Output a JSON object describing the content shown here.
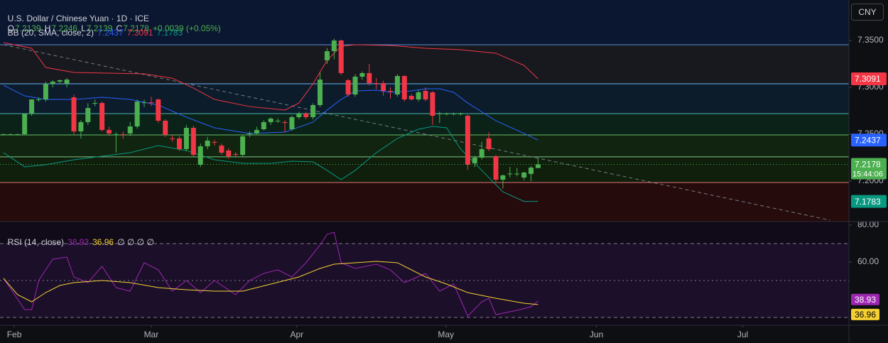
{
  "chart_data": [
    {
      "type": "candlestick",
      "title": "U.S. Dollar / Chinese Yuan · 1D · ICE",
      "ohlc_labels": [
        "O",
        "H",
        "L",
        "C"
      ],
      "change_label": "+0.0039 (+0.05%)",
      "indicator": "BB (20, SMA, close, 2)",
      "currency": "CNY",
      "countdown": "15:44:06",
      "up_color": "#4caf50",
      "down_color": "#f23645",
      "x": [
        0,
        1,
        2,
        3,
        4,
        5,
        6,
        7,
        8,
        9,
        10,
        11,
        12,
        13,
        14,
        15,
        16,
        17,
        18,
        19,
        20,
        21,
        22,
        23,
        24,
        25,
        26,
        27,
        28,
        29,
        30,
        31,
        32,
        33,
        34,
        35,
        36,
        37,
        38,
        39,
        40,
        41,
        42,
        43,
        44,
        45,
        46,
        47,
        48,
        49,
        50,
        51,
        52,
        53,
        54,
        55,
        56,
        57,
        58,
        59,
        60,
        61,
        62,
        63,
        64,
        65,
        66,
        67,
        68,
        69,
        70,
        71,
        72,
        73,
        74,
        75,
        76
      ],
      "open": [
        7.25,
        7.25,
        7.25,
        7.25,
        7.272,
        7.2871,
        7.2871,
        7.3038,
        7.3061,
        7.3038,
        7.2894,
        7.253,
        7.2629,
        7.2833,
        7.2833,
        7.2545,
        7.2492,
        7.25,
        7.2508,
        7.2583,
        7.2833,
        7.284,
        7.2871,
        7.2644,
        7.2455,
        7.2455,
        7.2341,
        7.2568,
        7.2174,
        7.2371,
        7.2417,
        7.2379,
        7.2326,
        7.2288,
        7.228,
        7.25,
        7.2508,
        7.2553,
        7.2629,
        7.2644,
        7.2629,
        7.2553,
        7.2682,
        7.272,
        7.2682,
        7.2811,
        7.3288,
        7.3386,
        7.35,
        7.3076,
        7.2924,
        7.3114,
        7.3152,
        7.3045,
        7.3045,
        7.2962,
        7.2924,
        7.3121,
        7.2909,
        7.2871,
        7.2962,
        7.2947,
        7.272,
        7.272,
        7.272,
        7.272,
        7.2697,
        7.2189,
        7.225,
        7.2455,
        7.2265,
        7.2015,
        7.2076,
        7.2076,
        7.2038,
        7.2076,
        7.2139
      ],
      "high": [
        7.2508,
        7.2508,
        7.2508,
        7.272,
        7.2871,
        7.2894,
        7.3061,
        7.3076,
        7.3083,
        7.31,
        7.2924,
        7.265,
        7.283,
        7.287,
        7.285,
        7.258,
        7.252,
        7.253,
        7.263,
        7.287,
        7.287,
        7.29,
        7.288,
        7.266,
        7.249,
        7.248,
        7.26,
        7.259,
        7.24,
        7.247,
        7.244,
        7.24,
        7.235,
        7.231,
        7.249,
        7.253,
        7.258,
        7.265,
        7.268,
        7.267,
        7.265,
        7.27,
        7.274,
        7.274,
        7.283,
        7.316,
        7.342,
        7.352,
        7.351,
        7.309,
        7.314,
        7.317,
        7.325,
        7.31,
        7.307,
        7.3,
        7.314,
        7.313,
        7.293,
        7.297,
        7.3,
        7.296,
        7.274,
        7.273,
        7.273,
        7.273,
        7.271,
        7.227,
        7.242,
        7.252,
        7.228,
        7.207,
        7.215,
        7.214,
        7.21,
        7.216,
        7.2246
      ],
      "low": [
        7.2492,
        7.2492,
        7.2492,
        7.2492,
        7.2697,
        7.2848,
        7.2848,
        7.3,
        7.3038,
        7.3,
        7.25,
        7.2455,
        7.26,
        7.28,
        7.253,
        7.248,
        7.2303,
        7.245,
        7.248,
        7.256,
        7.279,
        7.28,
        7.262,
        7.247,
        7.242,
        7.232,
        7.232,
        7.226,
        7.215,
        7.234,
        7.238,
        7.228,
        7.224,
        7.225,
        7.226,
        7.247,
        7.249,
        7.254,
        7.26,
        7.262,
        7.252,
        7.254,
        7.266,
        7.266,
        7.266,
        7.279,
        7.325,
        7.33,
        7.313,
        7.29,
        7.29,
        7.308,
        7.302,
        7.298,
        7.291,
        7.288,
        7.29,
        7.285,
        7.286,
        7.285,
        7.285,
        7.26,
        7.262,
        7.27,
        7.27,
        7.27,
        7.212,
        7.215,
        7.223,
        7.232,
        7.199,
        7.192,
        7.204,
        7.205,
        7.201,
        7.2,
        7.2139
      ],
      "close": [
        7.25,
        7.25,
        7.25,
        7.272,
        7.2871,
        7.2871,
        7.3038,
        7.3061,
        7.3076,
        7.3083,
        7.253,
        7.2629,
        7.278,
        7.2833,
        7.2545,
        7.2508,
        7.25,
        7.2492,
        7.2583,
        7.2848,
        7.284,
        7.2833,
        7.2644,
        7.2492,
        7.2447,
        7.2341,
        7.2568,
        7.228,
        7.2371,
        7.2432,
        7.241,
        7.2303,
        7.2265,
        7.228,
        7.2477,
        7.2508,
        7.2545,
        7.2629,
        7.2667,
        7.2644,
        7.262,
        7.2682,
        7.272,
        7.2682,
        7.2811,
        7.3083,
        7.3386,
        7.35,
        7.3152,
        7.2924,
        7.3114,
        7.3152,
        7.3045,
        7.3038,
        7.2962,
        7.2955,
        7.3121,
        7.2871,
        7.2871,
        7.2947,
        7.2871,
        7.2697,
        7.272,
        7.272,
        7.272,
        7.272,
        7.2174,
        7.225,
        7.2341,
        7.2341,
        7.2015,
        7.2061,
        7.208,
        7.208,
        7.2091,
        7.2144,
        7.2178
      ],
      "bands": [
        {
          "color": "#2962ff",
          "x": [
            0,
            3,
            6,
            10,
            14,
            18,
            22,
            26,
            30,
            35,
            40,
            44,
            46,
            48,
            50,
            53,
            55,
            58,
            60,
            62,
            64,
            66,
            70,
            74,
            76
          ],
          "values": [
            7.3023,
            7.2909,
            7.2871,
            7.2871,
            7.2894,
            7.2871,
            7.2811,
            7.2682,
            7.2568,
            7.2508,
            7.2523,
            7.2629,
            7.2758,
            7.2871,
            7.2962,
            7.297,
            7.2947,
            7.2962,
            7.2985,
            7.2985,
            7.2947,
            7.2833,
            7.2644,
            7.2508,
            7.2437
          ]
        },
        {
          "color": "#f23645",
          "x": [
            0,
            4,
            6,
            10,
            15,
            20,
            24,
            27,
            30,
            35,
            40,
            42,
            44,
            46,
            48,
            50,
            55,
            60,
            65,
            70,
            74,
            76
          ],
          "values": [
            7.3477,
            7.3417,
            7.3212,
            7.3159,
            7.3152,
            7.3144,
            7.3098,
            7.2992,
            7.2871,
            7.2795,
            7.2758,
            7.2833,
            7.3038,
            7.3288,
            7.3439,
            7.3455,
            7.3447,
            7.3417,
            7.3402,
            7.3364,
            7.3235,
            7.3091
          ]
        },
        {
          "color": "#089981",
          "x": [
            0,
            3,
            6,
            10,
            14,
            18,
            22,
            26,
            30,
            34,
            38,
            41,
            44,
            46,
            48,
            50,
            53,
            56,
            59,
            61,
            63,
            65,
            68,
            71,
            74,
            76
          ],
          "values": [
            7.2303,
            7.2152,
            7.2174,
            7.2227,
            7.2265,
            7.2303,
            7.2379,
            7.2326,
            7.2227,
            7.2189,
            7.2189,
            7.2212,
            7.2205,
            7.2114,
            7.2015,
            7.2114,
            7.2303,
            7.2455,
            7.2553,
            7.2583,
            7.2568,
            7.2341,
            7.2114,
            7.1886,
            7.1783,
            7.1783
          ]
        }
      ],
      "levels": [
        7.3455,
        7.3038,
        7.272,
        7.2492,
        7.2258,
        7.1985
      ],
      "level_colors": [
        "#5b8fd6",
        "#64b5f6",
        "#4db6ac",
        "#66bb6a",
        "#81c784",
        "#e57373"
      ],
      "zone_colors": [
        "#0b1630",
        "#17191f",
        "#0c1c2a",
        "#0b2219",
        "#112410",
        "#0f1f0c",
        "#260b0c"
      ],
      "trendline": {
        "x": [
          0,
          117.5
        ],
        "values": [
          7.3455,
          7.1583
        ]
      },
      "ylim": [
        7.1568,
        7.3932
      ],
      "yticks": [
        {
          "value": 7.35,
          "label": "7.3500"
        },
        {
          "value": 7.3,
          "label": "7.3000"
        },
        {
          "value": 7.25,
          "label": "7.2500"
        },
        {
          "value": 7.2,
          "label": "7.2000"
        }
      ],
      "xlim": [
        -0.505,
        120.2
      ],
      "xticks": [
        {
          "value": 1.52,
          "label": "Feb"
        },
        {
          "value": 21.0,
          "label": "Mar"
        },
        {
          "value": 41.7,
          "label": "Apr"
        },
        {
          "value": 62.9,
          "label": "May"
        },
        {
          "value": 84.3,
          "label": "Jun"
        },
        {
          "value": 105.1,
          "label": "Jul"
        }
      ]
    },
    {
      "type": "line",
      "title": "RSI (14, close)",
      "placeholders": "∅ ∅ ∅ ∅",
      "series": [
        {
          "color": "#9c27b0",
          "x": [
            0,
            3,
            4,
            5,
            7,
            9,
            10,
            12,
            14,
            16,
            18,
            20,
            22,
            24,
            26,
            28,
            30,
            33,
            35,
            37,
            39,
            41,
            43,
            45,
            46,
            47,
            48,
            50,
            53,
            55,
            57,
            60,
            62,
            64,
            66,
            68,
            69,
            70,
            73,
            75,
            76
          ],
          "values": [
            51.15,
            34.23,
            34.23,
            50.0,
            61.54,
            62.69,
            51.92,
            48.85,
            57.69,
            46.15,
            44.23,
            59.62,
            55.77,
            44.23,
            50.0,
            43.46,
            50.0,
            42.31,
            50.0,
            53.85,
            55.77,
            51.92,
            59.62,
            69.23,
            75.0,
            76.15,
            59.62,
            56.54,
            58.85,
            55.77,
            48.85,
            53.85,
            44.23,
            48.08,
            30.77,
            38.46,
            40.38,
            31.54,
            33.85,
            35.77,
            38.93
          ]
        },
        {
          "color": "#f5d033",
          "x": [
            0,
            2,
            4,
            6,
            8,
            10,
            14,
            18,
            22,
            26,
            30,
            34,
            38,
            42,
            45,
            47,
            50,
            53,
            56,
            58,
            60,
            63,
            66,
            70,
            74,
            76
          ],
          "values": [
            51.15,
            42.31,
            38.46,
            43.46,
            47.31,
            48.85,
            50.0,
            48.85,
            46.15,
            45.0,
            44.23,
            44.23,
            48.08,
            51.92,
            56.54,
            58.85,
            59.62,
            60.38,
            59.62,
            55.77,
            51.92,
            48.08,
            43.46,
            40.38,
            37.69,
            36.96
          ]
        }
      ],
      "levels": [
        70,
        50,
        30
      ],
      "ylim": [
        25.77,
        81.92
      ],
      "yticks": [
        {
          "value": 80,
          "label": "80.00"
        },
        {
          "value": 60,
          "label": "60.00"
        }
      ]
    }
  ]
}
